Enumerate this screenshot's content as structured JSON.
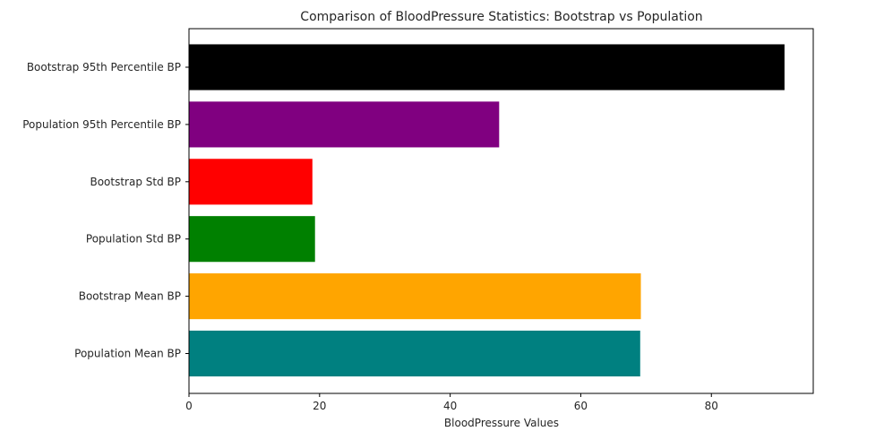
{
  "chart_data": {
    "type": "bar",
    "orientation": "horizontal",
    "title": "Comparison of BloodPressure Statistics: Bootstrap vs Population",
    "xlabel": "BloodPressure Values",
    "ylabel": "",
    "xlim": [
      0,
      95.6
    ],
    "xticks": [
      0,
      20,
      40,
      60,
      80
    ],
    "grid": false,
    "categories": [
      "Population Mean BP",
      "Bootstrap Mean BP",
      "Population Std BP",
      "Bootstrap Std BP",
      "Population 95th Percentile BP",
      "Bootstrap 95th Percentile BP"
    ],
    "values": [
      69.1,
      69.2,
      19.3,
      18.9,
      47.5,
      91.2
    ],
    "colors": [
      "#008080",
      "#ffa500",
      "#008000",
      "#ff0000",
      "#800080",
      "#000000"
    ]
  }
}
